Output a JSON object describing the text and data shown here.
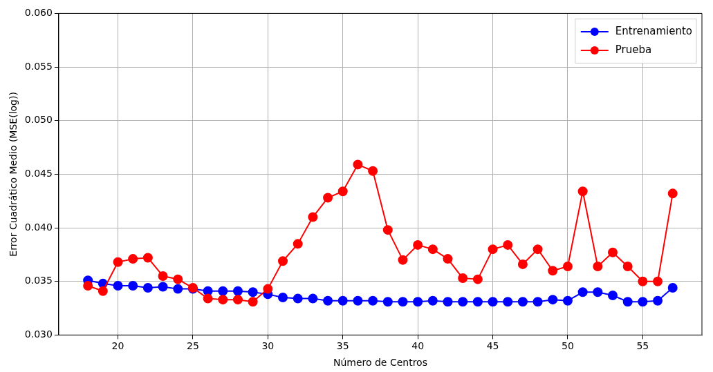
{
  "chart_data": {
    "type": "line",
    "xlabel": "Número de Centros",
    "ylabel": "Error Cuadrático Medio (MSE(log))",
    "x": [
      18,
      19,
      20,
      21,
      22,
      23,
      24,
      25,
      26,
      27,
      28,
      29,
      30,
      31,
      32,
      33,
      34,
      35,
      36,
      37,
      38,
      39,
      40,
      41,
      42,
      43,
      44,
      45,
      46,
      47,
      48,
      49,
      50,
      51,
      52,
      53,
      54,
      55,
      56,
      57
    ],
    "series": [
      {
        "name": "Entrenamiento",
        "color": "#0000ff",
        "values": [
          0.0351,
          0.0348,
          0.0346,
          0.0346,
          0.0344,
          0.0345,
          0.0343,
          0.0343,
          0.0341,
          0.0341,
          0.0341,
          0.034,
          0.0338,
          0.0335,
          0.0334,
          0.0334,
          0.0332,
          0.0332,
          0.0332,
          0.0332,
          0.0331,
          0.0331,
          0.0331,
          0.0332,
          0.0331,
          0.0331,
          0.0331,
          0.0331,
          0.0331,
          0.0331,
          0.0331,
          0.0333,
          0.0332,
          0.034,
          0.034,
          0.0337,
          0.0331,
          0.0331,
          0.0332,
          0.0344
        ]
      },
      {
        "name": "Prueba",
        "color": "#ff0000",
        "values": [
          0.0346,
          0.0341,
          0.0368,
          0.0371,
          0.0372,
          0.0355,
          0.0352,
          0.0344,
          0.0334,
          0.0333,
          0.0333,
          0.0331,
          0.0343,
          0.0369,
          0.0385,
          0.041,
          0.0428,
          0.0434,
          0.0459,
          0.0453,
          0.0398,
          0.037,
          0.0384,
          0.038,
          0.0371,
          0.0353,
          0.0352,
          0.038,
          0.0384,
          0.0366,
          0.038,
          0.036,
          0.0364,
          0.0434,
          0.0364,
          0.0377,
          0.0364,
          0.035,
          0.035,
          0.0432
        ]
      }
    ],
    "xlim": [
      16.05,
      58.95
    ],
    "xticks": [
      20,
      25,
      30,
      35,
      40,
      45,
      50,
      55
    ],
    "ylim": [
      0.03,
      0.06
    ],
    "yticks": [
      {
        "value": 0.03,
        "label": "0.030"
      },
      {
        "value": 0.035,
        "label": "0.035"
      },
      {
        "value": 0.04,
        "label": "0.040"
      },
      {
        "value": 0.045,
        "label": "0.045"
      },
      {
        "value": 0.05,
        "label": "0.050"
      },
      {
        "value": 0.055,
        "label": "0.055"
      },
      {
        "value": 0.06,
        "label": "0.060"
      }
    ],
    "grid": true,
    "legend": "top right",
    "marker": "circle",
    "line_style": "solid"
  }
}
